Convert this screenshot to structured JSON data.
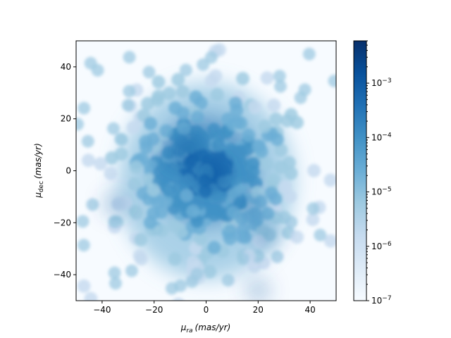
{
  "chart_data": {
    "type": "heatmap",
    "title": "",
    "xlabel_main": "μ",
    "xlabel_sub": "ra",
    "xlabel_unit": "(mas/yr)",
    "ylabel_main": "μ",
    "ylabel_sub": "dec",
    "ylabel_unit": "(mas/yr)",
    "xlim": [
      -50,
      50
    ],
    "ylim": [
      -50,
      50
    ],
    "xticks": [
      -40,
      -20,
      0,
      20,
      40
    ],
    "yticks": [
      -40,
      -20,
      0,
      20,
      40
    ],
    "xtick_labels": [
      "−40",
      "−20",
      "0",
      "20",
      "40"
    ],
    "ytick_labels": [
      "−40",
      "−20",
      "0",
      "20",
      "40"
    ],
    "grid": false,
    "colormap": "Blues",
    "colorbar": {
      "scale": "log",
      "range": [
        1e-07,
        0.006
      ],
      "major_ticks": [
        1e-07,
        1e-06,
        1e-05,
        0.0001,
        0.001
      ],
      "tick_labels": [
        {
          "base": "10",
          "exp": "−7"
        },
        {
          "base": "10",
          "exp": "−6"
        },
        {
          "base": "10",
          "exp": "−5"
        },
        {
          "base": "10",
          "exp": "−4"
        },
        {
          "base": "10",
          "exp": "−3"
        }
      ]
    },
    "density_peaks": [
      {
        "x": 2,
        "y": -1,
        "intensity": 1.0
      },
      {
        "x": -10,
        "y": 6,
        "intensity": 0.75
      },
      {
        "x": -5,
        "y": 11,
        "intensity": 0.7
      },
      {
        "x": 23,
        "y": -25,
        "intensity": 0.6
      },
      {
        "x": 17,
        "y": -14,
        "intensity": 0.55
      },
      {
        "x": -35,
        "y": -13,
        "intensity": 0.55
      },
      {
        "x": 20,
        "y": -46,
        "intensity": 0.55
      }
    ]
  }
}
